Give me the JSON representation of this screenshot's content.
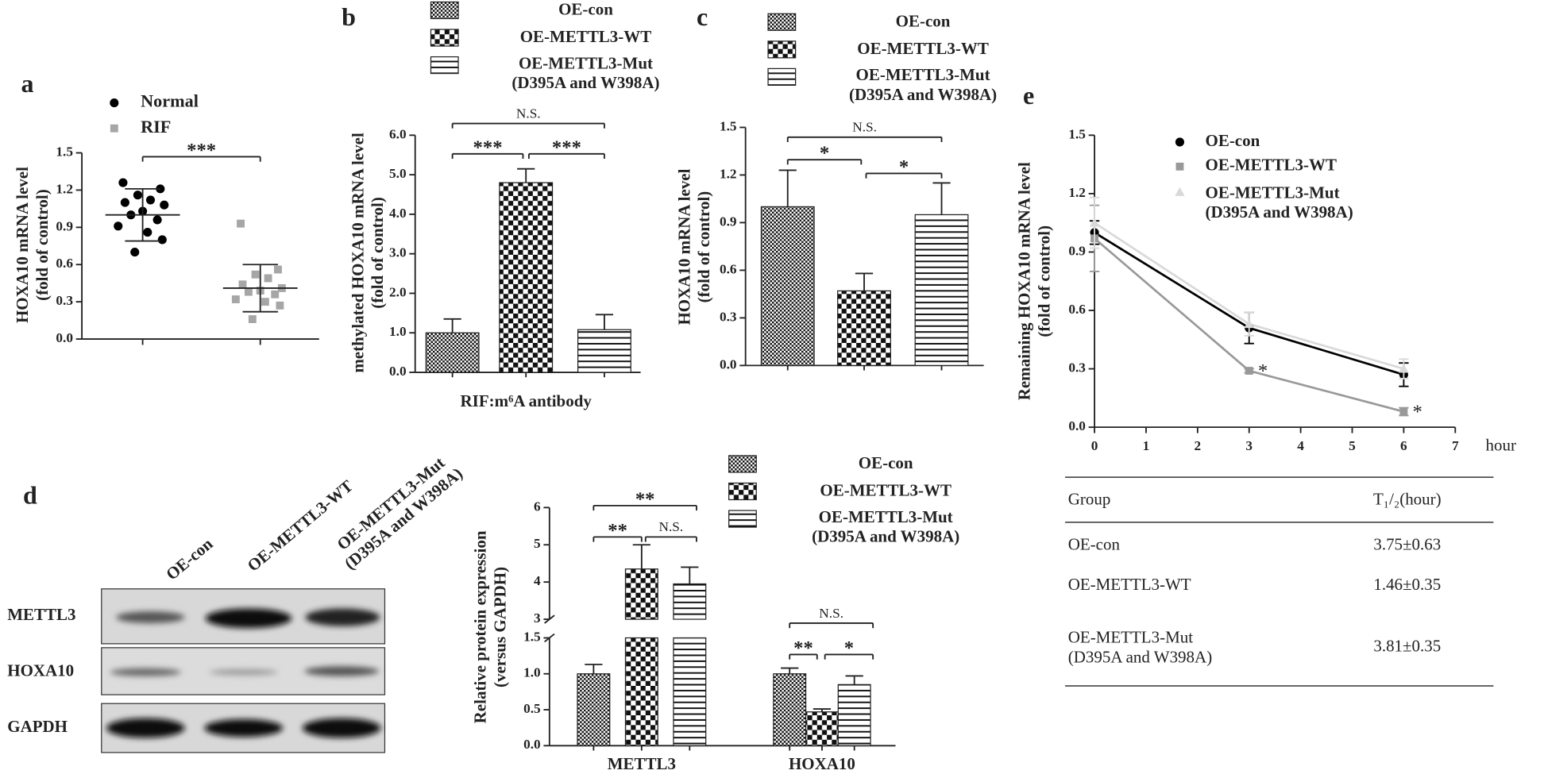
{
  "panel_labels": [
    "a",
    "b",
    "c",
    "d",
    "e"
  ],
  "chart_data": [
    {
      "type": "dot",
      "ylabel": "HOXA10 mRNA level\n(fold of control)",
      "series": [
        {
          "name": "Normal",
          "color": "#000000",
          "marker": "circle",
          "values": [
            1.26,
            1.21,
            1.16,
            1.12,
            1.1,
            1.08,
            1.03,
            1.0,
            0.96,
            0.91,
            0.86,
            0.8,
            0.7
          ],
          "mean": 1.0,
          "sd": 0.21
        },
        {
          "name": "RIF",
          "color": "#a6a6a6",
          "marker": "square",
          "values": [
            0.93,
            0.56,
            0.52,
            0.49,
            0.44,
            0.41,
            0.39,
            0.38,
            0.36,
            0.32,
            0.3,
            0.27,
            0.16
          ],
          "mean": 0.41,
          "sd": 0.19
        }
      ],
      "ylim": [
        0,
        1.5
      ],
      "yticks": [
        {
          "value": 0,
          "label": "0.0"
        },
        0.3,
        0.6,
        0.9,
        1.2,
        1.5
      ],
      "annotations": [
        "***"
      ]
    },
    {
      "type": "bar",
      "ylabel": "methylated HOXA10 mRNA level\n(fold of control)",
      "xlabel": "RIF:m⁶A antibody",
      "series": [
        {
          "name": "OE-con",
          "pattern": "fine-checker",
          "values": [
            1.0
          ],
          "errors": [
            0.35
          ]
        },
        {
          "name": "OE-METTL3-WT",
          "pattern": "checker",
          "values": [
            4.8
          ],
          "errors": [
            0.35
          ]
        },
        {
          "name": "OE-METTL3-Mut\n(D395A and W398A)",
          "pattern": "stripes",
          "values": [
            1.08
          ],
          "errors": [
            0.38
          ]
        }
      ],
      "ylim": [
        0,
        6
      ],
      "yticks": [
        {
          "value": 0,
          "label": "0.0"
        },
        {
          "value": 1,
          "label": "1.0"
        },
        {
          "value": 2,
          "label": "2.0"
        },
        {
          "value": 3,
          "label": "3.0"
        },
        {
          "value": 4,
          "label": "4.0"
        },
        {
          "value": 5,
          "label": "5.0"
        },
        {
          "value": 6,
          "label": "6.0"
        }
      ],
      "annotations": [
        "N.S.",
        "***",
        "***"
      ]
    },
    {
      "type": "bar",
      "ylabel": "HOXA10 mRNA level\n(fold of control)",
      "series": [
        {
          "name": "OE-con",
          "pattern": "fine-checker",
          "values": [
            1.0
          ],
          "errors": [
            0.23
          ]
        },
        {
          "name": "OE-METTL3-WT",
          "pattern": "checker",
          "values": [
            0.47
          ],
          "errors": [
            0.11
          ]
        },
        {
          "name": "OE-METTL3-Mut\n(D395A and W398A)",
          "pattern": "stripes",
          "values": [
            0.95
          ],
          "errors": [
            0.2
          ]
        }
      ],
      "ylim": [
        0,
        1.5
      ],
      "yticks": [
        {
          "value": 0,
          "label": "0.0"
        },
        0.3,
        0.6,
        0.9,
        1.2,
        1.5
      ],
      "annotations": [
        "N.S.",
        "*",
        "*"
      ]
    },
    {
      "type": "bar",
      "ylabel": "Relative protein expression\n(versus GAPDH)",
      "categories": [
        "METTL3",
        "HOXA10"
      ],
      "series": [
        {
          "name": "OE-con",
          "pattern": "fine-checker",
          "values": [
            1.0,
            1.0
          ],
          "errors": [
            0.13,
            0.08
          ]
        },
        {
          "name": "OE-METTL3-WT",
          "pattern": "checker",
          "values": [
            4.35,
            0.47
          ],
          "errors": [
            0.65,
            0.04
          ]
        },
        {
          "name": "OE-METTL3-Mut\n(D395A and W398A)",
          "pattern": "stripes",
          "values": [
            3.95,
            0.85
          ],
          "errors": [
            0.45,
            0.12
          ]
        }
      ],
      "ylim": [
        0,
        6
      ],
      "ybreak": [
        1.5,
        3
      ],
      "yticks": [
        {
          "value": 0,
          "label": "0.0"
        },
        0.5,
        {
          "value": 1,
          "label": "1.0"
        },
        1.5,
        3,
        4,
        5,
        6
      ],
      "annotations": [
        "**",
        "**",
        "N.S.",
        "N.S.",
        "**",
        "*"
      ]
    },
    {
      "type": "line",
      "ylabel": "Remaining HOXA10 mRNA level\n(fold of control)",
      "xlabel": "hour",
      "x": [
        0,
        3,
        6
      ],
      "series": [
        {
          "name": "OE-con",
          "color": "#000000",
          "marker": "circle",
          "values": [
            1.0,
            0.51,
            0.27
          ],
          "errors": [
            0.06,
            0.08,
            0.06
          ]
        },
        {
          "name": "OE-METTL3-WT",
          "color": "#999999",
          "marker": "square",
          "values": [
            0.97,
            0.29,
            0.08
          ],
          "errors": [
            0.17,
            0.01,
            0.02
          ]
        },
        {
          "name": "OE-METTL3-Mut\n(D395A and W398A)",
          "color": "#d9d9d9",
          "marker": "triangle",
          "values": [
            1.05,
            0.53,
            0.3
          ],
          "errors": [
            0.13,
            0.06,
            0.05
          ]
        }
      ],
      "xlim": [
        0,
        7
      ],
      "xticks": [
        0,
        1,
        2,
        3,
        4,
        5,
        6,
        7
      ],
      "ylim": [
        0,
        1.5
      ],
      "yticks": [
        {
          "value": 0,
          "label": "0.0"
        },
        0.3,
        0.6,
        0.9,
        1.2,
        1.5
      ],
      "annotations": [
        "*",
        "*"
      ]
    }
  ],
  "blot": {
    "columns": [
      "OE-con",
      "OE-METTL3-WT",
      "OE-METTL3-Mut\n(D395A and W398A)"
    ],
    "rows": [
      "METTL3",
      "HOXA10",
      "GAPDH"
    ]
  },
  "table": {
    "header": [
      "Group",
      "T₁/₂(hour)"
    ],
    "rows": [
      [
        "OE-con",
        "3.75±0.63"
      ],
      [
        "OE-METTL3-WT",
        "1.46±0.35"
      ],
      [
        "OE-METTL3-Mut\n (D395A and W398A)",
        "3.81±0.35"
      ]
    ]
  }
}
